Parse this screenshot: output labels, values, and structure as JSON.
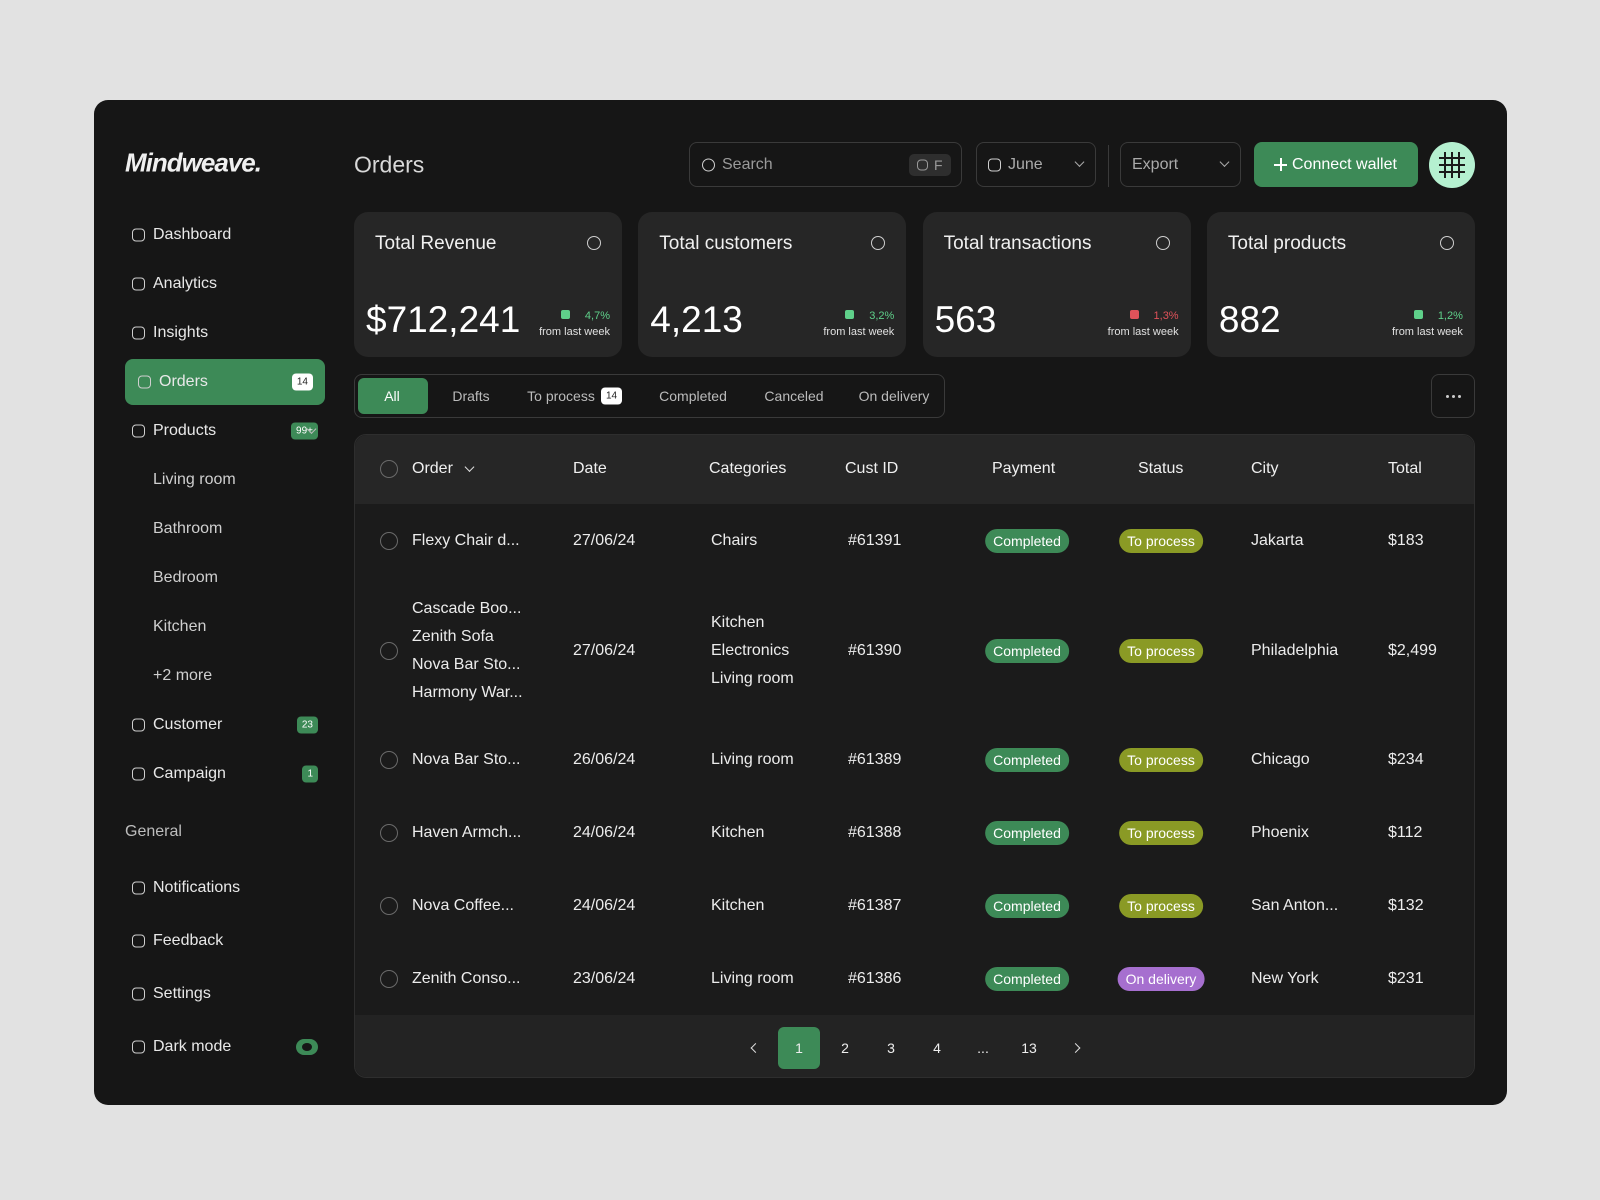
{
  "sidebar": {
    "logo": "Mindweave.",
    "nav": [
      {
        "label": "Dashboard"
      },
      {
        "label": "Analytics"
      },
      {
        "label": "Insights"
      },
      {
        "label": "Orders",
        "badge": "14",
        "active": true
      },
      {
        "label": "Products",
        "badge": "99+"
      }
    ],
    "product_subitems": [
      "Living room",
      "Bathroom",
      "Bedroom",
      "Kitchen",
      "+2 more"
    ],
    "nav_more": [
      {
        "label": "Customer",
        "badge": "23"
      },
      {
        "label": "Campaign",
        "badge": "1"
      }
    ],
    "section": "General",
    "general": [
      "Notifications",
      "Feedback",
      "Settings",
      "Dark mode"
    ]
  },
  "header": {
    "title": "Orders",
    "search": "Search",
    "shortcut": "F",
    "month": "June",
    "export": "Export",
    "connect": "Connect wallet"
  },
  "stats": [
    {
      "title": "Total Revenue",
      "value": "$712,241",
      "change": "4,7%",
      "note": "from last week",
      "color": "#5fd08a"
    },
    {
      "title": "Total customers",
      "value": "4,213",
      "change": "3,2%",
      "note": "from last week",
      "color": "#5fd08a"
    },
    {
      "title": "Total transactions",
      "value": "563",
      "change": "1,3%",
      "note": "from last week",
      "color": "#e0525a"
    },
    {
      "title": "Total products",
      "value": "882",
      "change": "1,2%",
      "note": "from last week",
      "color": "#5fd08a"
    }
  ],
  "tabs": [
    {
      "label": "All",
      "active": true
    },
    {
      "label": "Drafts"
    },
    {
      "label": "To process",
      "badge": "14"
    },
    {
      "label": "Completed"
    },
    {
      "label": "Canceled"
    },
    {
      "label": "On delivery"
    }
  ],
  "table": {
    "columns": [
      "Order",
      "Date",
      "Categories",
      "Cust ID",
      "Payment",
      "Status",
      "City",
      "Total"
    ],
    "rows": [
      {
        "order": [
          "Flexy Chair d..."
        ],
        "date": "27/06/24",
        "categories": [
          "Chairs"
        ],
        "cust_id": "#61391",
        "payment": {
          "text": "Completed",
          "color": "#3d8a57"
        },
        "status": {
          "text": "To process",
          "color": "#8a9a25"
        },
        "city": "Jakarta",
        "total": "$183"
      },
      {
        "order": [
          "Cascade Boo...",
          "Zenith Sofa",
          "Nova Bar Sto...",
          "Harmony War..."
        ],
        "date": "27/06/24",
        "categories": [
          "Kitchen",
          "Electronics",
          "Living room"
        ],
        "cust_id": "#61390",
        "payment": {
          "text": "Completed",
          "color": "#3d8a57"
        },
        "status": {
          "text": "To process",
          "color": "#8a9a25"
        },
        "city": "Philadelphia",
        "total": "$2,499"
      },
      {
        "order": [
          "Nova Bar Sto..."
        ],
        "date": "26/06/24",
        "categories": [
          "Living room"
        ],
        "cust_id": "#61389",
        "payment": {
          "text": "Completed",
          "color": "#3d8a57"
        },
        "status": {
          "text": "To process",
          "color": "#8a9a25"
        },
        "city": "Chicago",
        "total": "$234"
      },
      {
        "order": [
          "Haven Armch..."
        ],
        "date": "24/06/24",
        "categories": [
          "Kitchen"
        ],
        "cust_id": "#61388",
        "payment": {
          "text": "Completed",
          "color": "#3d8a57"
        },
        "status": {
          "text": "To process",
          "color": "#8a9a25"
        },
        "city": "Phoenix",
        "total": "$112"
      },
      {
        "order": [
          "Nova Coffee..."
        ],
        "date": "24/06/24",
        "categories": [
          "Kitchen"
        ],
        "cust_id": "#61387",
        "payment": {
          "text": "Completed",
          "color": "#3d8a57"
        },
        "status": {
          "text": "To process",
          "color": "#8a9a25"
        },
        "city": "San Anton...",
        "total": "$132"
      },
      {
        "order": [
          "Zenith Conso..."
        ],
        "date": "23/06/24",
        "categories": [
          "Living room"
        ],
        "cust_id": "#61386",
        "payment": {
          "text": "Completed",
          "color": "#3d8a57"
        },
        "status": {
          "text": "On delivery",
          "color": "#a66fcf"
        },
        "city": "New York",
        "total": "$231"
      }
    ]
  },
  "pagination": {
    "pages": [
      {
        "label": "1",
        "current": true
      },
      {
        "label": "2"
      },
      {
        "label": "3"
      },
      {
        "label": "4"
      },
      {
        "label": "..."
      },
      {
        "label": "13"
      }
    ]
  }
}
